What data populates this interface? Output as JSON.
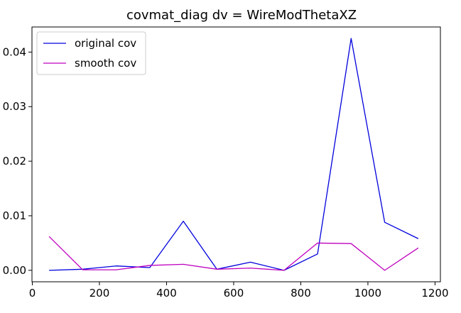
{
  "chart_data": {
    "type": "line",
    "title": "covmat_diag dv = WireModThetaXZ",
    "xlabel": "",
    "ylabel": "",
    "xlim": [
      -1,
      1216
    ],
    "ylim": [
      -0.0021,
      0.0446
    ],
    "xticks": [
      0,
      200,
      400,
      600,
      800,
      1000,
      1200
    ],
    "xtick_labels": [
      "0",
      "200",
      "400",
      "600",
      "800",
      "1000",
      "1200"
    ],
    "yticks": [
      0.0,
      0.01,
      0.02,
      0.03,
      0.04
    ],
    "ytick_labels": [
      "0.00",
      "0.01",
      "0.02",
      "0.03",
      "0.04"
    ],
    "grid": false,
    "legend_position": "top-left",
    "x": [
      50,
      150,
      250,
      350,
      450,
      550,
      650,
      750,
      850,
      950,
      1050,
      1150
    ],
    "series": [
      {
        "name": "original cov",
        "color": "#0000dd",
        "values": [
          0.0,
          0.0002,
          0.0008,
          0.0005,
          0.009,
          0.0002,
          0.0015,
          0.0,
          0.003,
          0.0425,
          0.0088,
          0.0058
        ]
      },
      {
        "name": "smooth cov",
        "color": "#bf00bf",
        "values": [
          0.0062,
          0.0001,
          0.0001,
          0.0009,
          0.0011,
          0.0002,
          0.0004,
          0.0,
          0.005,
          0.0049,
          0.0,
          0.0041
        ]
      }
    ]
  }
}
